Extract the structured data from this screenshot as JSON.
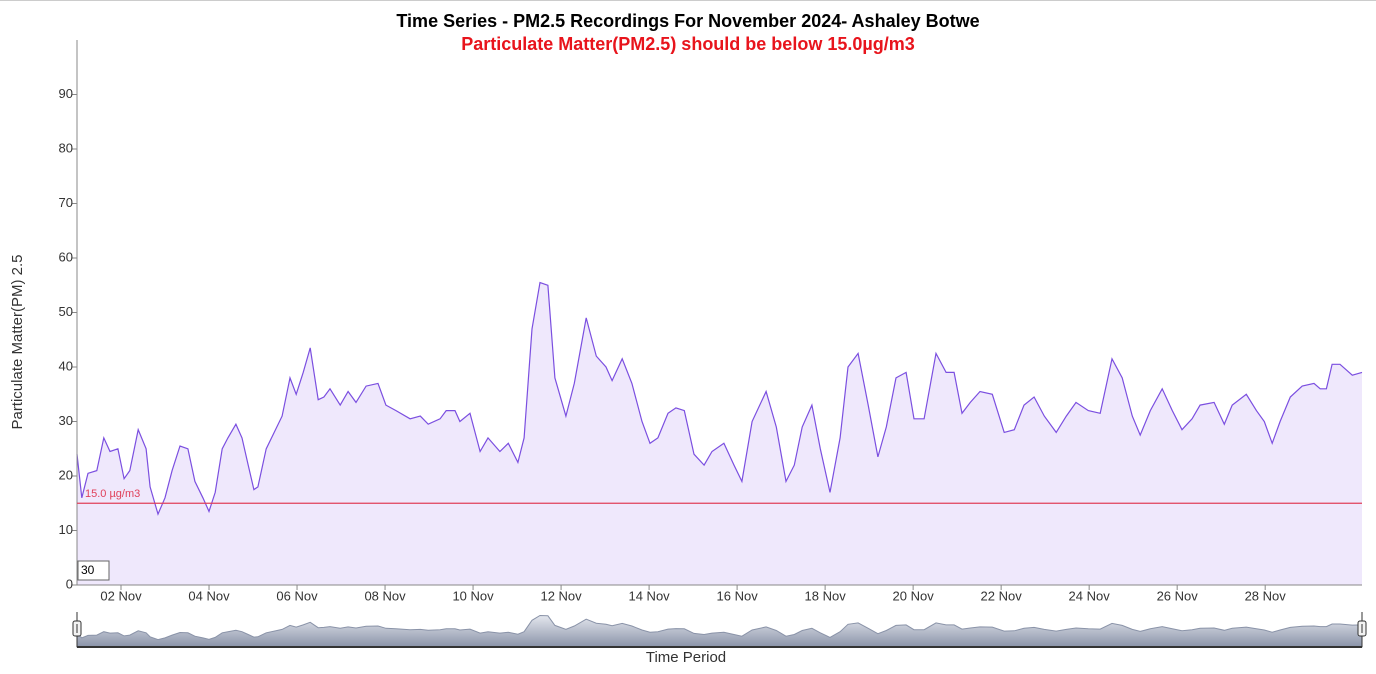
{
  "chart_data": {
    "type": "line",
    "title": "Time Series - PM2.5 Recordings For November 2024- Ashaley Botwe",
    "subtitle": "Particulate Matter(PM2.5) should be below 15.0µg/m3",
    "y_label": "Particulate Matter(PM) 2.5",
    "x_label": "Time Period",
    "rolling_period": "30",
    "threshold": {
      "value": 15,
      "label": "15.0 µg/m3",
      "color": "#e0405a"
    },
    "area": true,
    "xlim": [
      1,
      30.2
    ],
    "ylim": [
      0,
      100
    ],
    "yticks": [
      0,
      10,
      20,
      30,
      40,
      50,
      60,
      70,
      80,
      90
    ],
    "xticks": [
      {
        "value": 2,
        "label": "02 Nov"
      },
      {
        "value": 4,
        "label": "04 Nov"
      },
      {
        "value": 6,
        "label": "06 Nov"
      },
      {
        "value": 8,
        "label": "08 Nov"
      },
      {
        "value": 10,
        "label": "10 Nov"
      },
      {
        "value": 12,
        "label": "12 Nov"
      },
      {
        "value": 14,
        "label": "14 Nov"
      },
      {
        "value": 16,
        "label": "16 Nov"
      },
      {
        "value": 18,
        "label": "18 Nov"
      },
      {
        "value": 20,
        "label": "20 Nov"
      },
      {
        "value": 22,
        "label": "22 Nov"
      },
      {
        "value": 24,
        "label": "24 Nov"
      },
      {
        "value": 26,
        "label": "26 Nov"
      },
      {
        "value": 28,
        "label": "28 Nov"
      }
    ],
    "x": [
      1.0,
      1.11,
      1.25,
      1.45,
      1.61,
      1.75,
      1.93,
      2.07,
      2.2,
      2.39,
      2.57,
      2.66,
      2.84,
      3.0,
      3.16,
      3.34,
      3.52,
      3.68,
      3.86,
      4.0,
      4.14,
      4.3,
      4.43,
      4.61,
      4.75,
      4.89,
      5.02,
      5.11,
      5.3,
      5.48,
      5.66,
      5.84,
      5.98,
      6.14,
      6.3,
      6.48,
      6.61,
      6.75,
      6.98,
      7.16,
      7.34,
      7.57,
      7.84,
      8.02,
      8.25,
      8.57,
      8.8,
      8.98,
      9.25,
      9.39,
      9.59,
      9.7,
      9.93,
      10.16,
      10.34,
      10.61,
      10.8,
      11.02,
      11.16,
      11.34,
      11.52,
      11.7,
      11.86,
      12.11,
      12.3,
      12.57,
      12.8,
      13.02,
      13.16,
      13.39,
      13.61,
      13.84,
      14.02,
      14.2,
      14.43,
      14.61,
      14.8,
      15.02,
      15.25,
      15.43,
      15.7,
      15.93,
      16.11,
      16.34,
      16.66,
      16.89,
      17.11,
      17.3,
      17.48,
      17.7,
      17.89,
      18.11,
      18.34,
      18.52,
      18.75,
      18.98,
      19.2,
      19.39,
      19.61,
      19.84,
      20.02,
      20.25,
      20.52,
      20.75,
      20.93,
      21.11,
      21.3,
      21.52,
      21.8,
      22.07,
      22.3,
      22.52,
      22.75,
      22.98,
      23.25,
      23.48,
      23.7,
      23.98,
      24.25,
      24.52,
      24.75,
      24.98,
      25.16,
      25.39,
      25.66,
      25.89,
      26.11,
      26.34,
      26.52,
      26.84,
      27.07,
      27.25,
      27.57,
      27.8,
      27.98,
      28.16,
      28.34,
      28.57,
      28.84,
      29.11,
      29.25,
      29.39,
      29.52,
      29.7,
      29.98,
      30.2
    ],
    "series": [
      {
        "name": "PM2.5",
        "color": "#7b4fe0",
        "fill": "#efe8fc",
        "values": [
          24,
          16,
          20.5,
          21,
          27,
          24.5,
          25,
          19.5,
          21,
          28.5,
          25,
          18,
          13,
          16,
          21,
          25.5,
          25,
          19,
          16,
          13.5,
          17,
          25,
          27,
          29.5,
          27,
          22,
          17.5,
          18,
          25,
          28,
          31,
          38,
          35,
          39,
          43.5,
          34,
          34.5,
          36,
          33,
          35.5,
          33.5,
          36.5,
          37,
          33,
          32,
          30.5,
          31,
          29.5,
          30.5,
          32,
          32,
          30,
          31.5,
          24.5,
          27,
          24.5,
          26,
          22.5,
          27,
          47,
          55.5,
          55,
          38,
          31,
          37,
          49,
          42,
          40,
          37.5,
          41.5,
          37,
          30,
          26,
          27,
          31.5,
          32.5,
          32,
          24,
          22,
          24.5,
          26,
          22,
          19,
          30,
          35.5,
          29,
          19,
          22,
          29,
          33,
          25,
          17,
          27,
          40,
          42.5,
          33,
          23.5,
          29,
          38,
          39,
          30.5,
          30.5,
          42.5,
          39,
          39,
          31.5,
          33.5,
          35.5,
          35,
          28,
          28.5,
          33,
          34.5,
          31,
          28,
          31,
          33.5,
          32,
          31.5,
          41.5,
          38,
          31,
          27.5,
          32,
          36,
          32,
          28.5,
          30.5,
          33,
          33.5,
          29.5,
          33,
          35,
          32,
          30,
          26,
          30,
          34.5,
          36.5,
          37,
          36,
          36,
          40.5,
          40.5,
          38.5,
          39
        ]
      }
    ]
  }
}
